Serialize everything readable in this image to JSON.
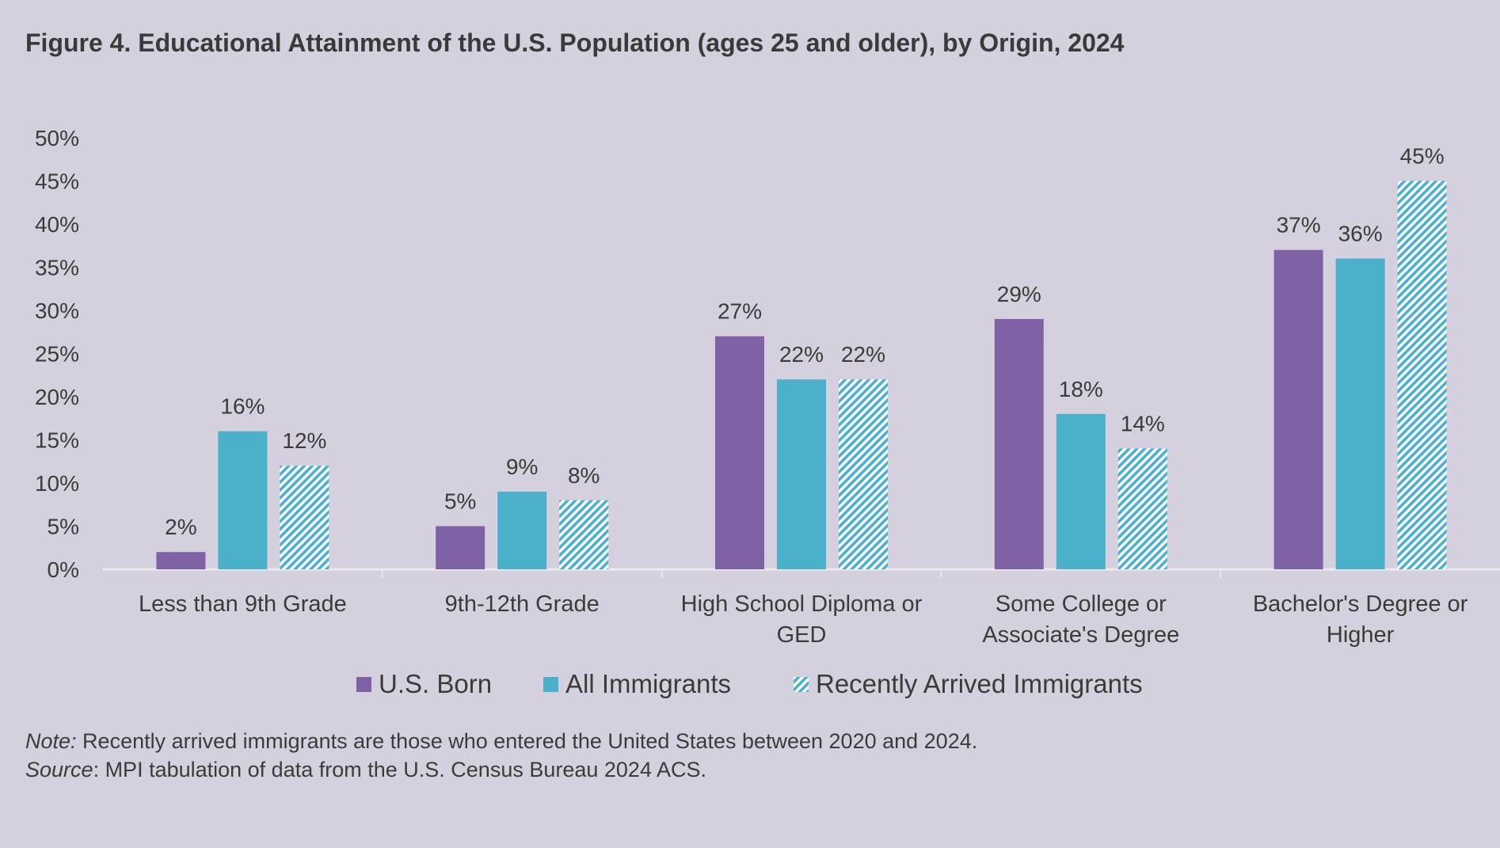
{
  "title": "Figure 4. Educational Attainment of the U.S. Population (ages 25 and older), by Origin, 2024",
  "colors": {
    "background": "#d5d0dd",
    "us_born": "#7f62a6",
    "all_immigrants": "#4bb0c9",
    "recent_hatch": "#4bb0c9",
    "recent_bg": "#ffffff",
    "text": "#3b3b3b",
    "axis": "#ebe8ef"
  },
  "chart_data": {
    "type": "bar",
    "title": "Figure 4. Educational Attainment of the U.S. Population (ages 25 and older), by Origin, 2024",
    "categories": [
      [
        "Less than 9th Grade"
      ],
      [
        "9th-12th Grade"
      ],
      [
        "High School Diploma or",
        "GED"
      ],
      [
        "Some College or",
        "Associate's Degree"
      ],
      [
        "Bachelor's Degree or",
        "Higher"
      ]
    ],
    "series": [
      {
        "name": "U.S. Born",
        "values": [
          2,
          5,
          27,
          29,
          37
        ],
        "labels": [
          "2%",
          "5%",
          "27%",
          "29%",
          "37%"
        ]
      },
      {
        "name": "All Immigrants",
        "values": [
          16,
          9,
          22,
          18,
          36
        ],
        "labels": [
          "16%",
          "9%",
          "22%",
          "18%",
          "36%"
        ]
      },
      {
        "name": "Recently Arrived Immigrants",
        "values": [
          12,
          8,
          22,
          14,
          45
        ],
        "labels": [
          "12%",
          "8%",
          "22%",
          "14%",
          "45%"
        ]
      }
    ],
    "ylim": [
      0,
      50
    ],
    "yticks": [
      0,
      5,
      10,
      15,
      20,
      25,
      30,
      35,
      40,
      45,
      50
    ],
    "ytick_labels": [
      "0%",
      "5%",
      "10%",
      "15%",
      "20%",
      "25%",
      "30%",
      "35%",
      "40%",
      "45%",
      "50%"
    ],
    "xlabel": "",
    "ylabel": "",
    "grid": false,
    "legend": "bottom-center"
  },
  "note": {
    "label": "Note:",
    "text": " Recently arrived immigrants are those who entered the United States between 2020 and 2024."
  },
  "source": {
    "label": "Source",
    "text": ": MPI tabulation of data from the U.S. Census Bureau 2024 ACS."
  }
}
